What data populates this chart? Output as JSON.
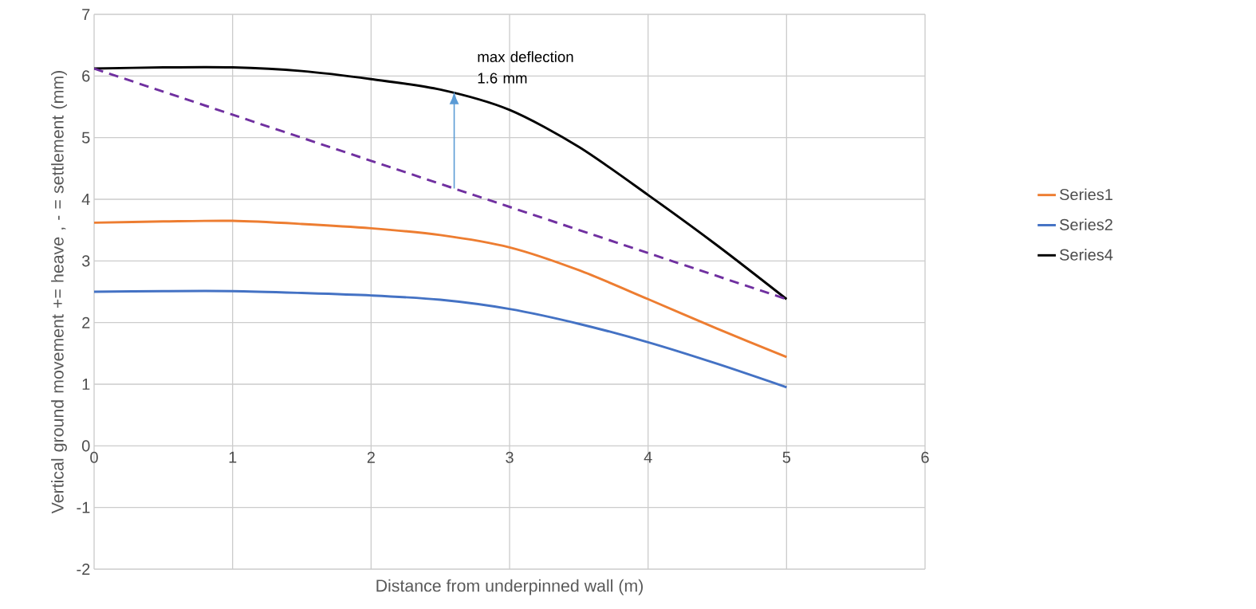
{
  "chart_data": {
    "type": "line",
    "xlabel": "Distance from underpinned wall (m)",
    "ylabel": "Vertical ground movement += heave , - = settlement (mm)",
    "xlim": [
      0,
      6
    ],
    "ylim": [
      -2,
      7
    ],
    "xticks": [
      0,
      1,
      2,
      3,
      4,
      5,
      6
    ],
    "yticks": [
      -2,
      -1,
      0,
      1,
      2,
      3,
      4,
      5,
      6,
      7
    ],
    "grid": true,
    "legend": "right",
    "marker": "none",
    "series": [
      {
        "name": "Series1",
        "color": "#ed7d31",
        "x": [
          0,
          0.5,
          1,
          1.5,
          2,
          2.5,
          3,
          3.5,
          4,
          4.5,
          5
        ],
        "values": [
          3.62,
          3.64,
          3.65,
          3.6,
          3.53,
          3.42,
          3.22,
          2.85,
          2.38,
          1.9,
          1.44
        ]
      },
      {
        "name": "Series2",
        "color": "#4472c4",
        "x": [
          0,
          0.5,
          1,
          1.5,
          2,
          2.5,
          3,
          3.5,
          4,
          4.5,
          5
        ],
        "values": [
          2.5,
          2.51,
          2.51,
          2.48,
          2.44,
          2.37,
          2.22,
          1.98,
          1.68,
          1.33,
          0.95
        ]
      },
      {
        "name": "Series4",
        "color": "#000000",
        "x": [
          0,
          0.5,
          1,
          1.5,
          2,
          2.5,
          3,
          3.5,
          4,
          4.5,
          5
        ],
        "values": [
          6.12,
          6.14,
          6.14,
          6.08,
          5.95,
          5.78,
          5.45,
          4.85,
          4.07,
          3.25,
          2.38
        ]
      },
      {
        "color": "#7030a0",
        "line_style": "dashed",
        "x": [
          0,
          5
        ],
        "values": [
          6.12,
          2.38
        ]
      }
    ],
    "annotations": [
      {
        "text": "max deflection 1.6 mm",
        "x": 2.6,
        "y": 5.75
      }
    ]
  }
}
